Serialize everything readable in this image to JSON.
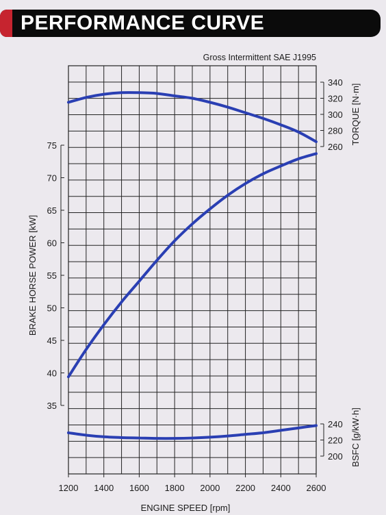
{
  "header": {
    "title": "PERFORMANCE CURVE"
  },
  "chart_data": {
    "type": "line",
    "subtitle": "Gross Intermittent SAE J1995",
    "xlabel": "ENGINE SPEED [rpm]",
    "x_range": [
      1200,
      2600
    ],
    "x_ticks": [
      1200,
      1400,
      1600,
      1800,
      2000,
      2200,
      2400,
      2600
    ],
    "axes": {
      "power": {
        "label": "BRAKE HORSE POWER [kW]",
        "range": [
          35,
          75
        ],
        "ticks": [
          35,
          40,
          45,
          50,
          55,
          60,
          65,
          70,
          75
        ]
      },
      "torque": {
        "label": "TORQUE [N·m]",
        "range": [
          260,
          340
        ],
        "ticks": [
          260,
          280,
          300,
          320,
          340
        ]
      },
      "bsfc": {
        "label": "BSFC [g/kW·h]",
        "range": [
          200,
          240
        ],
        "ticks": [
          200,
          220,
          240
        ]
      }
    },
    "series": [
      {
        "axis": "torque",
        "x": [
          1200,
          1300,
          1400,
          1500,
          1600,
          1700,
          1800,
          1900,
          2000,
          2100,
          2200,
          2300,
          2400,
          2500,
          2600
        ],
        "values": [
          315,
          321,
          325,
          327,
          327,
          326,
          323,
          320,
          315,
          309,
          302,
          295,
          287,
          278,
          266
        ]
      },
      {
        "axis": "power",
        "x": [
          1200,
          1300,
          1400,
          1500,
          1600,
          1700,
          1800,
          1900,
          2000,
          2100,
          2200,
          2300,
          2400,
          2500,
          2600
        ],
        "values": [
          39.4,
          43.6,
          47.4,
          50.9,
          54.1,
          57.3,
          60.3,
          62.9,
          65.2,
          67.3,
          69.1,
          70.6,
          71.8,
          72.9,
          73.7
        ]
      },
      {
        "axis": "bsfc",
        "x": [
          1200,
          1300,
          1400,
          1500,
          1600,
          1700,
          1800,
          1900,
          2000,
          2100,
          2200,
          2300,
          2400,
          2500,
          2600
        ],
        "values": [
          229,
          226,
          224,
          223,
          222.5,
          222,
          222,
          222.5,
          223.5,
          225,
          227,
          229,
          232,
          235,
          238
        ]
      }
    ],
    "grid": true,
    "colors": {
      "curve": "#2a3fb3",
      "grid": "#222222"
    }
  }
}
